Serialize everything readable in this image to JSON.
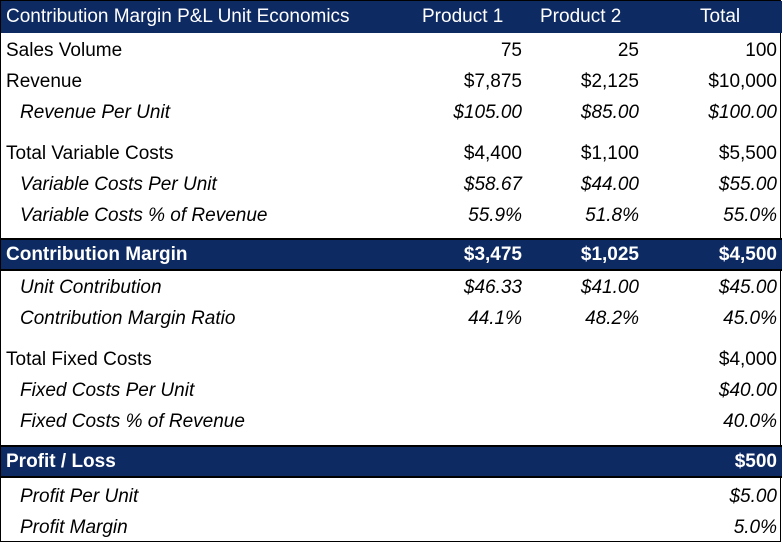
{
  "header": {
    "title": "Contribution Margin P&L Unit Economics",
    "col_p1": "Product 1",
    "col_p2": "Product 2",
    "col_total": "Total"
  },
  "rows": {
    "sales_volume": {
      "label": "Sales Volume",
      "p1": "75",
      "p2": "25",
      "total": "100"
    },
    "revenue": {
      "label": "Revenue",
      "p1": "$7,875",
      "p2": "$2,125",
      "total": "$10,000"
    },
    "revenue_per_unit": {
      "label": "Revenue Per Unit",
      "p1": "$105.00",
      "p2": "$85.00",
      "total": "$100.00"
    },
    "total_variable_costs": {
      "label": "Total Variable Costs",
      "p1": "$4,400",
      "p2": "$1,100",
      "total": "$5,500"
    },
    "variable_costs_per_unit": {
      "label": "Variable Costs Per Unit",
      "p1": "$58.67",
      "p2": "$44.00",
      "total": "$55.00"
    },
    "variable_costs_pct": {
      "label": "Variable Costs % of Revenue",
      "p1": "55.9%",
      "p2": "51.8%",
      "total": "55.0%"
    },
    "contribution_margin": {
      "label": "Contribution Margin",
      "p1": "$3,475",
      "p2": "$1,025",
      "total": "$4,500"
    },
    "unit_contribution": {
      "label": "Unit Contribution",
      "p1": "$46.33",
      "p2": "$41.00",
      "total": "$45.00"
    },
    "contribution_margin_ratio": {
      "label": "Contribution Margin Ratio",
      "p1": "44.1%",
      "p2": "48.2%",
      "total": "45.0%"
    },
    "total_fixed_costs": {
      "label": "Total Fixed Costs",
      "total": "$4,000"
    },
    "fixed_costs_per_unit": {
      "label": "Fixed Costs Per Unit",
      "total": "$40.00"
    },
    "fixed_costs_pct": {
      "label": "Fixed Costs % of Revenue",
      "total": "40.0%"
    },
    "profit_loss": {
      "label": "Profit / Loss",
      "total": "$500"
    },
    "profit_per_unit": {
      "label": "Profit Per Unit",
      "total": "$5.00"
    },
    "profit_margin": {
      "label": "Profit Margin",
      "total": "5.0%"
    }
  },
  "colors": {
    "header_band": "#0e2a63",
    "header_text": "#ffffff"
  }
}
